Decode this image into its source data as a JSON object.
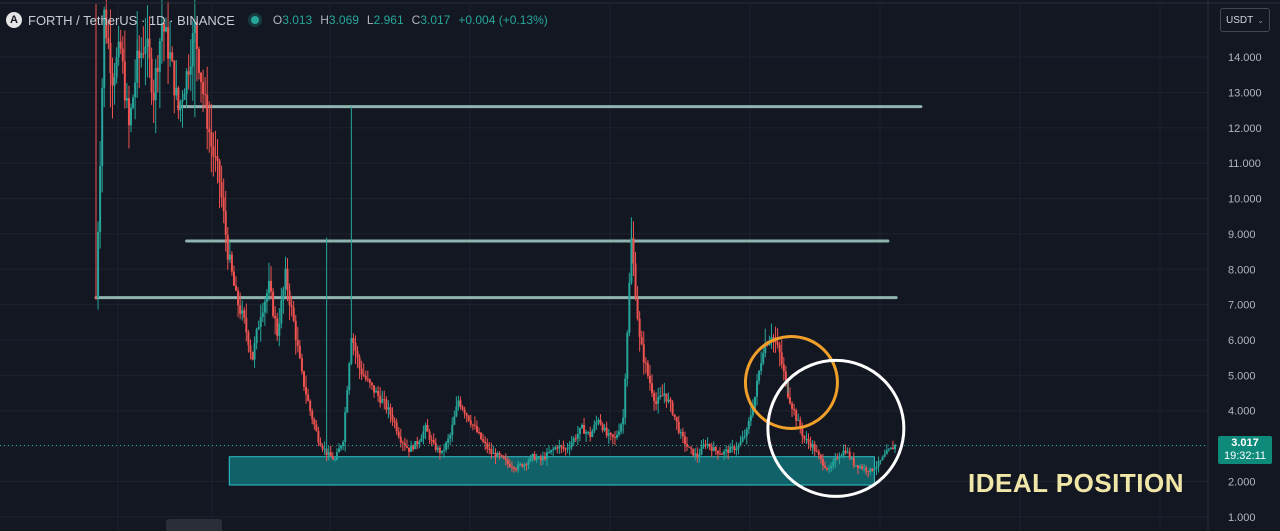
{
  "header": {
    "logo_letter": "A",
    "title": "FORTH / TetherUS · 1D · BINANCE",
    "ohlc": {
      "o_label": "O",
      "o_value": "3.013",
      "h_label": "H",
      "h_value": "3.069",
      "l_label": "L",
      "l_value": "2.961",
      "c_label": "C",
      "c_value": "3.017",
      "change": "+0.004 (+0.13%)"
    }
  },
  "currency": {
    "label": "USDT",
    "chevron_icon": "chevron-down-icon"
  },
  "price_badge": {
    "price": "3.017",
    "countdown": "19:32:11"
  },
  "annotation": {
    "text": "IDEAL POSITION"
  },
  "colors": {
    "background": "#131722",
    "up": "#26a69a",
    "down": "#ef5350",
    "level_line": "#8fb3ae",
    "zone_fill": "#116a70",
    "zone_border": "#2ec4c9",
    "orange_circle": "#f0a02a",
    "white_circle": "#ffffff",
    "annotation_text": "#f0e6a8"
  },
  "chart_data": {
    "type": "candlestick",
    "symbol": "FORTH / TetherUS",
    "interval": "1D",
    "exchange": "BINANCE",
    "y_ticks": [
      "1.000",
      "2.000",
      "3.000",
      "4.000",
      "5.000",
      "6.000",
      "7.000",
      "8.000",
      "9.000",
      "10.000",
      "11.000",
      "12.000",
      "13.000",
      "14.000"
    ],
    "ylim": [
      0.6,
      15.5
    ],
    "grid": true,
    "last_price": 3.017,
    "series": [
      {
        "name": "price",
        "values": [
          7.2,
          15.2,
          13.5,
          14.2,
          12.0,
          13.8,
          14.5,
          13.0,
          15.0,
          14.0,
          12.5,
          13.5,
          14.8,
          13.0,
          11.5,
          10.5,
          8.5,
          7.2,
          6.5,
          5.5,
          6.8,
          7.5,
          6.2,
          7.8,
          6.5,
          5.0,
          4.0,
          3.2,
          2.8,
          2.6,
          3.2,
          6.2,
          5.2,
          4.8,
          4.5,
          4.2,
          3.8,
          3.2,
          2.9,
          3.1,
          3.5,
          3.0,
          2.8,
          3.3,
          4.3,
          3.9,
          3.5,
          3.1,
          2.8,
          2.7,
          2.5,
          2.4,
          2.5,
          2.7,
          2.6,
          2.8,
          3.0,
          2.9,
          3.2,
          3.5,
          3.3,
          3.8,
          3.3,
          3.2,
          3.8,
          8.8,
          6.0,
          5.0,
          4.2,
          4.5,
          4.0,
          3.3,
          2.9,
          2.7,
          3.1,
          2.9,
          2.8,
          2.9,
          3.0,
          3.4,
          4.4,
          5.8,
          6.2,
          5.6,
          4.5,
          3.8,
          3.2,
          3.0,
          2.6,
          2.3,
          2.7,
          2.9,
          2.5,
          2.4,
          2.3,
          2.5,
          2.8,
          3.017
        ]
      }
    ],
    "levels": [
      {
        "price": 12.6,
        "x_start_bar": 10,
        "x_end_bar": 88
      },
      {
        "price": 8.8,
        "x_start_bar": 11,
        "x_end_bar": 84
      },
      {
        "price": 7.2,
        "x_start_bar": 0,
        "x_end_bar": 85
      }
    ],
    "zone": {
      "low": 1.9,
      "high": 2.7,
      "x_start_bar": 18,
      "x_end_bar": 86
    }
  }
}
